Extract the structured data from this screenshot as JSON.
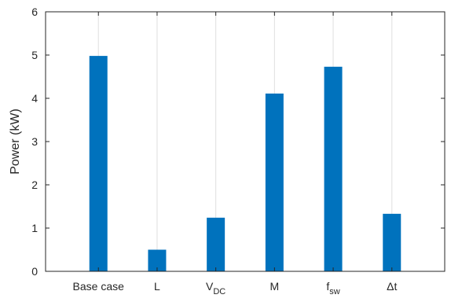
{
  "chart_data": {
    "type": "bar",
    "categories": [
      {
        "label": "Base case",
        "sub": ""
      },
      {
        "label": "L",
        "sub": ""
      },
      {
        "label": "V",
        "sub": "DC"
      },
      {
        "label": "M",
        "sub": ""
      },
      {
        "label": "f",
        "sub": "sw"
      },
      {
        "label": "Δt",
        "sub": ""
      }
    ],
    "values": [
      4.98,
      0.5,
      1.24,
      4.11,
      4.73,
      1.33
    ],
    "ylabel": "Power (kW)",
    "xlabel": "",
    "ylim": [
      0,
      6
    ],
    "yticks": [
      0,
      1,
      2,
      3,
      4,
      5,
      6
    ],
    "grid": "x-only",
    "bar_color": "#0072bd",
    "grid_color": "#dfdfdf",
    "axis_color": "#262626"
  }
}
